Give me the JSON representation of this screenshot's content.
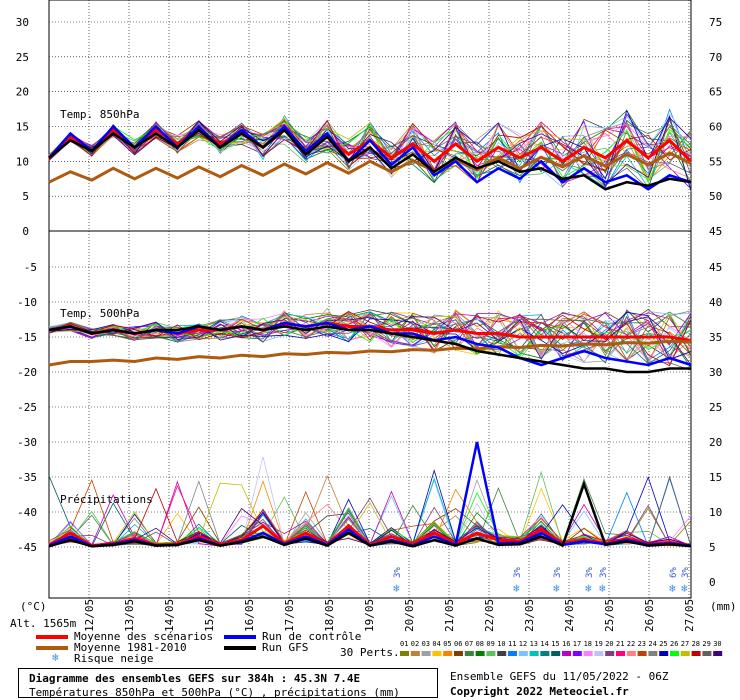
{
  "chart_data": {
    "type": "line",
    "panels": [
      {
        "label": "Temp. 850hPa",
        "left_ticks": [
          "30",
          "25",
          "20",
          "15",
          "10",
          "5",
          "0"
        ],
        "right_ticks": [
          "75",
          "70",
          "65",
          "60",
          "55",
          "50",
          "45"
        ],
        "ylim": [
          0,
          33
        ]
      },
      {
        "label": "Temp. 500hPa",
        "left_ticks": [
          "-5",
          "-10",
          "-15",
          "-20",
          "-25",
          "-30",
          "-35",
          "-40",
          "-45"
        ],
        "right_ticks": [
          "45",
          "40",
          "35",
          "30",
          "25",
          "20",
          "15",
          "10",
          "5",
          "0"
        ],
        "ylim": [
          -47,
          -1
        ]
      },
      {
        "label": "Précipitations",
        "unit": "(mm)"
      }
    ],
    "x_categories": [
      "12/05",
      "13/05",
      "14/05",
      "15/05",
      "16/05",
      "17/05",
      "18/05",
      "19/05",
      "20/05",
      "21/05",
      "22/05",
      "23/05",
      "24/05",
      "25/05",
      "26/05",
      "27/05"
    ],
    "series": [
      {
        "name": "Moyenne des scénarios",
        "color": "#ff0000",
        "t850": [
          10.5,
          13.5,
          11.5,
          14.5,
          12,
          14.5,
          12.5,
          14.5,
          12.5,
          14,
          12,
          14.5,
          11.5,
          13.5,
          11,
          13,
          10.5,
          12.5,
          10,
          12.5,
          10,
          12,
          10.5,
          12,
          10,
          12,
          10.5,
          13,
          10.5,
          13,
          10
        ],
        "t500": [
          -14,
          -13.5,
          -14.5,
          -14,
          -14.5,
          -14,
          -14.5,
          -14,
          -14,
          -13.5,
          -14,
          -13,
          -13.5,
          -13,
          -13.5,
          -13.5,
          -14,
          -14,
          -14.5,
          -14,
          -14.5,
          -14.5,
          -15,
          -15,
          -15,
          -15,
          -15,
          -15,
          -15,
          -15,
          -15.5
        ],
        "precip": [
          0.3,
          2,
          0.2,
          0.5,
          1.2,
          0.3,
          0.4,
          1.5,
          0.3,
          1,
          3,
          0.5,
          2,
          0.4,
          3,
          0.3,
          1.5,
          0.4,
          2,
          0.5,
          2,
          1,
          0.8,
          2.5,
          0.5,
          1,
          0.5,
          1.2,
          0.4,
          0.6,
          0.2
        ]
      },
      {
        "name": "Moyenne 1981-2010",
        "color": "#b05a10",
        "t850": [
          7,
          8.5,
          7.3,
          9,
          7.5,
          9,
          7.6,
          9.2,
          7.8,
          9.4,
          8,
          9.6,
          8.2,
          9.8,
          8.3,
          10,
          8.5,
          10.1,
          8.6,
          10.3,
          8.8,
          10.5,
          9,
          10.6,
          9.2,
          10.8,
          9.3,
          11,
          9.5,
          11.2,
          9.7
        ],
        "t500": [
          -19,
          -18.5,
          -18.5,
          -18.3,
          -18.5,
          -18,
          -18.2,
          -17.8,
          -18,
          -17.6,
          -17.8,
          -17.4,
          -17.5,
          -17.2,
          -17.3,
          -17,
          -17.1,
          -16.8,
          -16.9,
          -16.6,
          -16.7,
          -16.4,
          -16.5,
          -16.2,
          -16.3,
          -16,
          -16.1,
          -15.8,
          -15.9,
          -15.6,
          -15.7
        ]
      },
      {
        "name": "Run de contrôle",
        "color": "#0000ff",
        "t850": [
          10.5,
          14,
          11.5,
          15,
          12,
          15,
          12,
          15,
          12,
          14.5,
          12,
          15,
          11.5,
          14,
          10,
          13,
          9.5,
          12,
          8,
          10,
          7,
          9,
          7.5,
          10,
          7,
          9,
          7,
          8,
          6,
          8,
          7
        ],
        "t500": [
          -14,
          -13.5,
          -14.5,
          -14,
          -14.5,
          -14,
          -14.5,
          -13.5,
          -14,
          -13.5,
          -14,
          -13,
          -13.5,
          -13,
          -14,
          -13.5,
          -14.5,
          -14.5,
          -15.5,
          -15,
          -16,
          -16.5,
          -18,
          -19,
          -18,
          -17,
          -18,
          -18.5,
          -19,
          -18,
          -19
        ],
        "precip": [
          0.2,
          1.5,
          0.1,
          0.4,
          1,
          0.2,
          0.3,
          1.2,
          0.2,
          0.8,
          2,
          0.4,
          1.5,
          0.3,
          2.5,
          0.2,
          1,
          0.2,
          1.5,
          0.3,
          15,
          0.5,
          0.6,
          2,
          0.3,
          0.8,
          0.4,
          1,
          0.3,
          0.5,
          0.2
        ]
      },
      {
        "name": "Run GFS",
        "color": "#000000",
        "t850": [
          10.5,
          13,
          11.5,
          14,
          12,
          14,
          12,
          14.5,
          12,
          14,
          12,
          14.5,
          11,
          13.5,
          10,
          12,
          9,
          11,
          8.5,
          10.5,
          9,
          10,
          8.5,
          9,
          7.5,
          8,
          6,
          7,
          6.5,
          7.5,
          7
        ],
        "t500": [
          -14,
          -13.5,
          -14.5,
          -14,
          -14.5,
          -14,
          -14,
          -13.5,
          -14,
          -13.5,
          -14,
          -13.5,
          -14,
          -13.5,
          -14,
          -14,
          -14.5,
          -15,
          -15.5,
          -16,
          -17,
          -17.5,
          -18,
          -18.5,
          -19,
          -19.5,
          -19.5,
          -20,
          -20,
          -19.5,
          -19.5
        ],
        "precip": [
          0.1,
          1,
          0.1,
          0.3,
          0.8,
          0.2,
          0.3,
          1,
          0.2,
          0.7,
          1.5,
          0.3,
          1.2,
          0.2,
          2,
          0.2,
          0.8,
          0.1,
          1,
          0.2,
          1.2,
          0.3,
          0.4,
          1.5,
          0.2,
          9,
          0.3,
          0.8,
          0.2,
          0.4,
          0.1
        ]
      }
    ],
    "snow_risk": [
      {
        "x": "20/05",
        "label": "3%"
      },
      {
        "x": "23/05",
        "label": "3%"
      },
      {
        "x": "24/05",
        "label": "3%"
      },
      {
        "x": "25/05",
        "label": "3%"
      },
      {
        "x": "25/05",
        "label": "3%"
      },
      {
        "x": "27/05",
        "label": "6%"
      },
      {
        "x": "27/05",
        "label": "3%"
      }
    ],
    "perturbation_labels": [
      "01",
      "02",
      "03",
      "04",
      "05",
      "06",
      "07",
      "08",
      "09",
      "10",
      "11",
      "12",
      "13",
      "14",
      "15",
      "16",
      "17",
      "18",
      "19",
      "20",
      "21",
      "22",
      "23",
      "24",
      "25",
      "26",
      "27",
      "28",
      "29",
      "30"
    ],
    "perturbation_colors": [
      "#808000",
      "#c08040",
      "#a0a0a0",
      "#ffc000",
      "#ff8000",
      "#804000",
      "#408040",
      "#008000",
      "#60c060",
      "#404040",
      "#0080ff",
      "#80c0ff",
      "#00c0c0",
      "#008080",
      "#006060",
      "#c000c0",
      "#8000ff",
      "#ff80ff",
      "#c0c0ff",
      "#804080",
      "#ff0080",
      "#ff8080",
      "#c04000",
      "#808080",
      "#0000c0",
      "#00ff00",
      "#c0c000",
      "#c00000",
      "#606060",
      "#400080"
    ]
  },
  "labels": {
    "t850": "Temp. 850hPa",
    "t500": "Temp. 500hPa",
    "precip": "Précipitations",
    "unit_left": "(°C)",
    "unit_right": "(mm)",
    "alt": "Alt. 1565m",
    "perts": "30 Perts."
  },
  "legend": {
    "mean": "Moyenne des scénarios",
    "clim": "Moyenne 1981-2010",
    "snow": "Risque neige",
    "control": "Run de contrôle",
    "gfs": "Run GFS"
  },
  "footer": {
    "line1": "Diagramme des ensembles GEFS sur 384h : 45.3N 7.4E",
    "line2": "Températures 850hPa et 500hPa (°C) , précipitations (mm)",
    "run": "Ensemble GEFS du 11/05/2022 - 06Z",
    "copyright": "Copyright 2022 Meteociel.fr"
  }
}
